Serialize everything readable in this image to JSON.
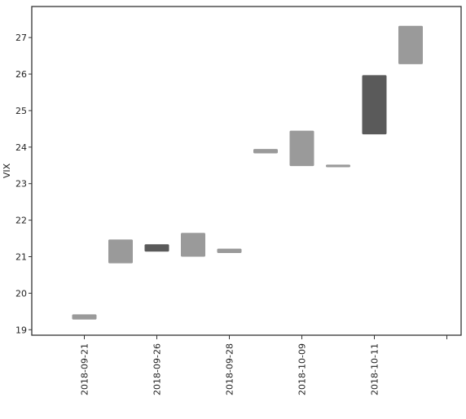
{
  "chart_data": {
    "type": "bar",
    "title": "",
    "xlabel": "",
    "ylabel": "VIX",
    "ylim": [
      18.85,
      27.85
    ],
    "yticks": [
      19,
      20,
      21,
      22,
      23,
      24,
      25,
      26,
      27
    ],
    "grid": false,
    "x_tick_labels": [
      "2018-09-21",
      "2018-09-26",
      "2018-09-28",
      "2018-10-09",
      "2018-10-11",
      ""
    ],
    "bars": [
      {
        "low": 19.28,
        "high": 19.42,
        "shade": "light"
      },
      {
        "low": 20.82,
        "high": 21.47,
        "shade": "light"
      },
      {
        "low": 21.14,
        "high": 21.34,
        "shade": "dark"
      },
      {
        "low": 21.0,
        "high": 21.65,
        "shade": "light"
      },
      {
        "low": 21.1,
        "high": 21.22,
        "shade": "light"
      },
      {
        "low": 23.83,
        "high": 23.95,
        "shade": "light"
      },
      {
        "low": 23.48,
        "high": 24.45,
        "shade": "light"
      },
      {
        "low": 23.45,
        "high": 23.52,
        "shade": "light"
      },
      {
        "low": 24.35,
        "high": 25.97,
        "shade": "dark"
      },
      {
        "low": 26.27,
        "high": 27.32,
        "shade": "light"
      }
    ],
    "colors": {
      "light": "#9a9a9a",
      "dark": "#5a5a5a",
      "axis": "#333333"
    }
  }
}
